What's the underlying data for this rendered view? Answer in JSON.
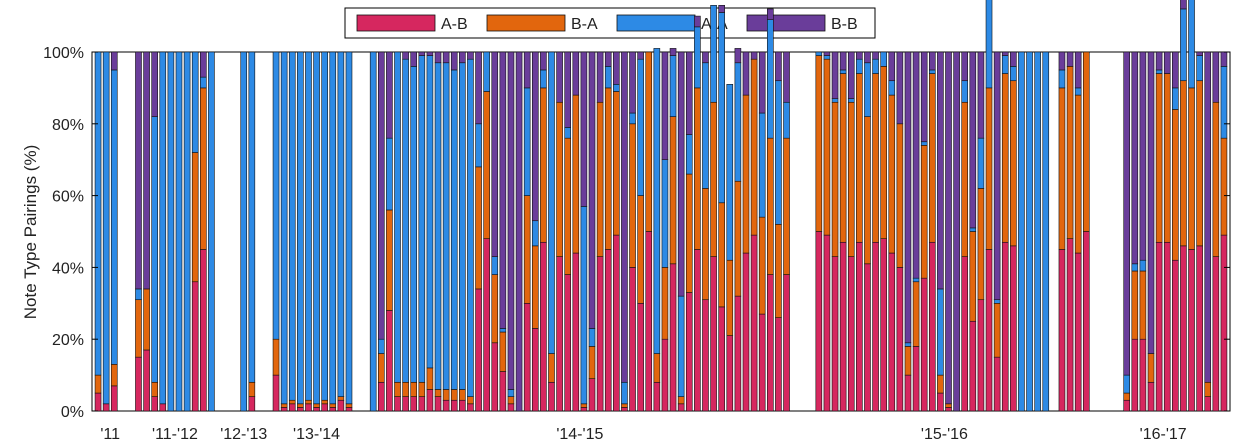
{
  "chart_data": {
    "type": "bar",
    "stacked": true,
    "title": "",
    "xlabel": "",
    "ylabel": "Note Type Pairings (%)",
    "ylim": [
      0,
      100
    ],
    "yticks": [
      "0%",
      "20%",
      "40%",
      "60%",
      "80%",
      "100%"
    ],
    "season_labels": [
      "'11",
      "'11-'12",
      "'12-'13",
      "'13-'14",
      "'14-'15",
      "'15-'16",
      "'16-'17"
    ],
    "legend_position": "top-center",
    "series": [
      {
        "name": "A-B",
        "color": "#d6275f"
      },
      {
        "name": "B-A",
        "color": "#e2660d"
      },
      {
        "name": "A-A",
        "color": "#2d8ae5"
      },
      {
        "name": "B-B",
        "color": "#6a3d9a"
      }
    ],
    "seasons": [
      {
        "label": "'11",
        "bars": [
          [
            5,
            5,
            90,
            0
          ],
          [
            2,
            0,
            98,
            0
          ],
          [
            7,
            6,
            82,
            5
          ],
          [
            0,
            0,
            0,
            0
          ]
        ]
      },
      {
        "label": "'11-'12",
        "bars": [
          [
            15,
            16,
            3,
            66
          ],
          [
            17,
            17,
            0,
            66
          ],
          [
            4,
            4,
            74,
            18
          ],
          [
            2,
            0,
            98,
            0
          ],
          [
            0,
            0,
            100,
            0
          ],
          [
            0,
            0,
            100,
            0
          ],
          [
            0,
            0,
            100,
            0
          ],
          [
            36,
            36,
            28,
            0
          ],
          [
            45,
            45,
            3,
            7
          ],
          [
            0,
            0,
            100,
            0
          ]
        ]
      },
      {
        "label": "'12-'13",
        "bars": [
          [
            0,
            0,
            0,
            0
          ],
          [
            0,
            0,
            0,
            0
          ],
          [
            0,
            0,
            100,
            0
          ],
          [
            4,
            4,
            92,
            0
          ],
          [
            0,
            0,
            0,
            0
          ]
        ]
      },
      {
        "label": "'13-'14",
        "bars": [
          [
            10,
            10,
            80,
            0
          ],
          [
            1,
            1,
            98,
            0
          ],
          [
            2,
            1,
            97,
            0
          ],
          [
            1,
            1,
            98,
            0
          ],
          [
            2,
            1,
            97,
            0
          ],
          [
            1,
            1,
            98,
            0
          ],
          [
            2,
            1,
            97,
            0
          ],
          [
            1,
            1,
            98,
            0
          ],
          [
            3,
            1,
            96,
            0
          ],
          [
            1,
            1,
            98,
            0
          ],
          [
            0,
            0,
            0,
            0
          ]
        ]
      },
      {
        "label": "'14-'15",
        "bars": [
          [
            0,
            0,
            100,
            0
          ],
          [
            8,
            8,
            4,
            80
          ],
          [
            28,
            28,
            20,
            24
          ],
          [
            4,
            4,
            92,
            0
          ],
          [
            4,
            4,
            90,
            2
          ],
          [
            4,
            4,
            88,
            4
          ],
          [
            4,
            4,
            91,
            1
          ],
          [
            6,
            6,
            87,
            1
          ],
          [
            4,
            2,
            91,
            3
          ],
          [
            3,
            3,
            91,
            3
          ],
          [
            3,
            3,
            89,
            5
          ],
          [
            3,
            3,
            91,
            3
          ],
          [
            2,
            2,
            94,
            2
          ],
          [
            34,
            34,
            12,
            20
          ],
          [
            48,
            41,
            11,
            0
          ],
          [
            19,
            19,
            5,
            57
          ],
          [
            11,
            11,
            1,
            77
          ],
          [
            2,
            2,
            2,
            94
          ],
          [
            0,
            0,
            0,
            100
          ],
          [
            30,
            30,
            30,
            10
          ],
          [
            23,
            23,
            7,
            47
          ],
          [
            47,
            43,
            5,
            5
          ],
          [
            8,
            8,
            84,
            0
          ],
          [
            43,
            43,
            0,
            14
          ],
          [
            38,
            38,
            3,
            21
          ],
          [
            44,
            44,
            0,
            12
          ],
          [
            1,
            1,
            55,
            43
          ],
          [
            9,
            9,
            5,
            77
          ],
          [
            43,
            43,
            0,
            14
          ],
          [
            45,
            45,
            6,
            4
          ],
          [
            49,
            40,
            2,
            9
          ],
          [
            1,
            1,
            6,
            92
          ],
          [
            40,
            40,
            3,
            17
          ],
          [
            30,
            30,
            38,
            2
          ],
          [
            50,
            50,
            0,
            0
          ],
          [
            8,
            8,
            85,
            0
          ],
          [
            20,
            20,
            30,
            30
          ],
          [
            41,
            41,
            17,
            2
          ],
          [
            2,
            2,
            28,
            68
          ],
          [
            33,
            33,
            11,
            23
          ],
          [
            45,
            45,
            17,
            3
          ],
          [
            31,
            31,
            35,
            3
          ],
          [
            43,
            43,
            27,
            0
          ],
          [
            29,
            29,
            53,
            2
          ],
          [
            21,
            21,
            49,
            0
          ],
          [
            32,
            32,
            33,
            4
          ],
          [
            44,
            44,
            0,
            12
          ],
          [
            49,
            49,
            0,
            2
          ],
          [
            27,
            27,
            29,
            17
          ],
          [
            38,
            38,
            33,
            3
          ],
          [
            26,
            26,
            40,
            8
          ],
          [
            38,
            38,
            10,
            14
          ]
        ]
      },
      {
        "label": "'15-'16",
        "bars": [
          [
            0,
            0,
            0,
            0
          ],
          [
            0,
            0,
            0,
            0
          ],
          [
            50,
            49,
            1,
            0
          ],
          [
            49,
            49,
            1,
            1
          ],
          [
            43,
            43,
            1,
            13
          ],
          [
            47,
            47,
            1,
            5
          ],
          [
            43,
            43,
            1,
            13
          ],
          [
            47,
            47,
            4,
            2
          ],
          [
            41,
            41,
            15,
            3
          ],
          [
            47,
            47,
            4,
            2
          ],
          [
            48,
            48,
            4,
            0
          ],
          [
            44,
            44,
            4,
            8
          ],
          [
            40,
            40,
            0,
            20
          ],
          [
            10,
            8,
            1,
            81
          ],
          [
            18,
            18,
            1,
            63
          ],
          [
            37,
            37,
            1,
            25
          ],
          [
            47,
            47,
            1,
            5
          ],
          [
            5,
            5,
            24,
            66
          ],
          [
            1,
            1,
            0,
            98
          ],
          [
            0,
            0,
            0,
            100
          ],
          [
            43,
            43,
            6,
            8
          ],
          [
            25,
            25,
            1,
            49
          ],
          [
            31,
            31,
            14,
            24
          ],
          [
            45,
            45,
            35,
            0
          ],
          [
            15,
            15,
            1,
            69
          ],
          [
            47,
            47,
            5,
            1
          ],
          [
            46,
            46,
            4,
            4
          ],
          [
            0,
            0,
            100,
            0
          ],
          [
            0,
            0,
            100,
            0
          ],
          [
            0,
            0,
            100,
            0
          ],
          [
            0,
            0,
            100,
            0
          ],
          [
            0,
            0,
            0,
            0
          ],
          [
            45,
            45,
            5,
            5
          ],
          [
            48,
            48,
            0,
            4
          ],
          [
            44,
            44,
            2,
            10
          ],
          [
            50,
            50,
            0,
            0
          ]
        ]
      },
      {
        "label": "'16-'17",
        "bars": [
          [
            0,
            0,
            0,
            0
          ],
          [
            0,
            0,
            0,
            0
          ],
          [
            0,
            0,
            0,
            0
          ],
          [
            3,
            2,
            5,
            90
          ],
          [
            20,
            19,
            2,
            59
          ],
          [
            20,
            19,
            3,
            58
          ],
          [
            8,
            8,
            0,
            84
          ],
          [
            47,
            47,
            1,
            5
          ],
          [
            47,
            47,
            0,
            6
          ],
          [
            42,
            42,
            6,
            10
          ],
          [
            46,
            46,
            20,
            8
          ],
          [
            45,
            45,
            30,
            0
          ],
          [
            46,
            46,
            7,
            1
          ],
          [
            4,
            4,
            0,
            92
          ],
          [
            43,
            43,
            0,
            14
          ],
          [
            49,
            27,
            20,
            4
          ]
        ]
      }
    ]
  }
}
